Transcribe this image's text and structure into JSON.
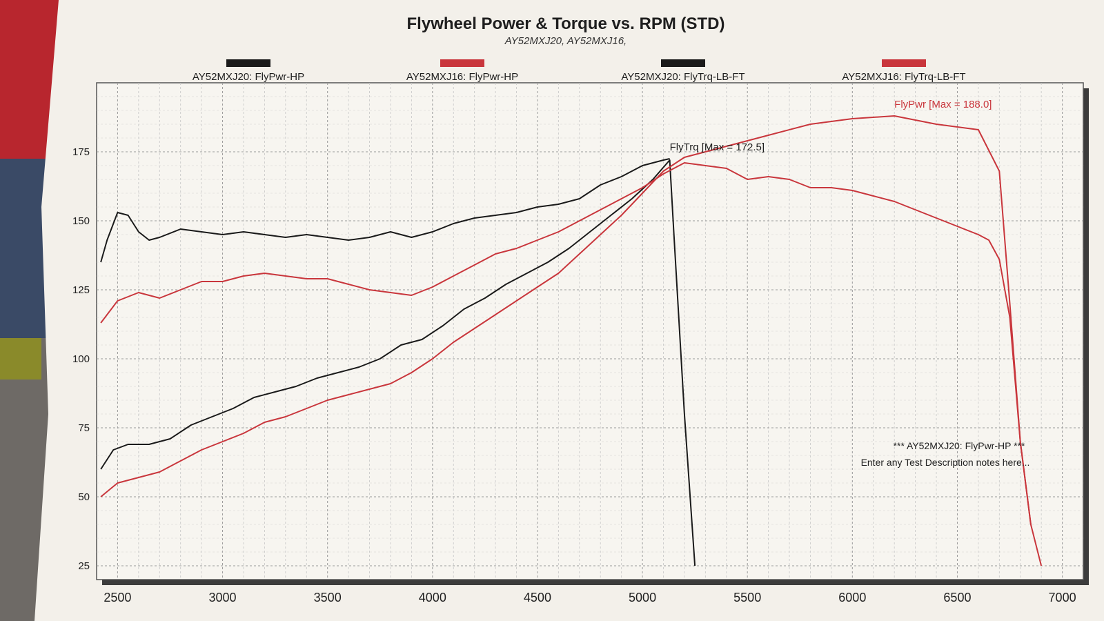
{
  "chart_data": {
    "type": "line",
    "title": "Flywheel Power & Torque vs. RPM (STD)",
    "subtitle": "AY52MXJ20, AY52MXJ16,",
    "xlim": [
      2400,
      7100
    ],
    "ylim": [
      20,
      200
    ],
    "x_ticks": [
      2500,
      3000,
      3500,
      4000,
      4500,
      5000,
      5500,
      6000,
      6500,
      7000
    ],
    "y_ticks": [
      25,
      50,
      75,
      100,
      125,
      150,
      175
    ],
    "grid": true,
    "legend_position": "top",
    "xlabel": "",
    "ylabel": "",
    "series": [
      {
        "name": "AY52MXJ20: FlyPwr-HP",
        "color": "#1a1a1a",
        "x": [
          2420,
          2480,
          2550,
          2650,
          2750,
          2850,
          2950,
          3050,
          3150,
          3250,
          3350,
          3450,
          3550,
          3650,
          3750,
          3850,
          3950,
          4050,
          4150,
          4250,
          4350,
          4450,
          4550,
          4650,
          4750,
          4850,
          4950,
          5050,
          5130,
          5150,
          5200,
          5250
        ],
        "y": [
          60,
          67,
          69,
          69,
          71,
          76,
          79,
          82,
          86,
          88,
          90,
          93,
          95,
          97,
          100,
          105,
          107,
          112,
          118,
          122,
          127,
          131,
          135,
          140,
          146,
          152,
          158,
          165,
          172,
          145,
          80,
          25
        ]
      },
      {
        "name": "AY52MXJ16: FlyPwr-HP",
        "color": "#c9363c",
        "x": [
          2420,
          2500,
          2600,
          2700,
          2800,
          2900,
          3000,
          3100,
          3200,
          3300,
          3400,
          3500,
          3600,
          3700,
          3800,
          3900,
          4000,
          4100,
          4200,
          4300,
          4400,
          4500,
          4600,
          4700,
          4800,
          4900,
          5000,
          5100,
          5200,
          5400,
          5600,
          5800,
          6000,
          6200,
          6400,
          6600,
          6700,
          6750,
          6800,
          6850,
          6900
        ],
        "y": [
          50,
          55,
          57,
          59,
          63,
          67,
          70,
          73,
          77,
          79,
          82,
          85,
          87,
          89,
          91,
          95,
          100,
          106,
          111,
          116,
          121,
          126,
          131,
          138,
          145,
          152,
          160,
          168,
          173,
          177,
          181,
          185,
          187,
          188,
          185,
          183,
          168,
          120,
          70,
          40,
          25
        ]
      },
      {
        "name": "AY52MXJ20: FlyTrq-LB-FT",
        "color": "#1a1a1a",
        "x": [
          2420,
          2450,
          2500,
          2550,
          2600,
          2650,
          2700,
          2800,
          2900,
          3000,
          3100,
          3200,
          3300,
          3400,
          3500,
          3600,
          3700,
          3800,
          3900,
          4000,
          4100,
          4200,
          4300,
          4400,
          4500,
          4600,
          4700,
          4800,
          4900,
          5000,
          5100,
          5130
        ],
        "y": [
          135,
          143,
          153,
          152,
          146,
          143,
          144,
          147,
          146,
          145,
          146,
          145,
          144,
          145,
          144,
          143,
          144,
          146,
          144,
          146,
          149,
          151,
          152,
          153,
          155,
          156,
          158,
          163,
          166,
          170,
          172,
          172.5
        ]
      },
      {
        "name": "AY52MXJ16: FlyTrq-LB-FT",
        "color": "#c9363c",
        "x": [
          2420,
          2500,
          2600,
          2700,
          2800,
          2900,
          3000,
          3100,
          3200,
          3300,
          3400,
          3500,
          3600,
          3700,
          3800,
          3900,
          4000,
          4100,
          4200,
          4300,
          4400,
          4500,
          4600,
          4700,
          4800,
          4900,
          5000,
          5100,
          5200,
          5300,
          5400,
          5500,
          5600,
          5700,
          5800,
          5900,
          6000,
          6100,
          6200,
          6300,
          6400,
          6500,
          6600,
          6650,
          6700,
          6750,
          6800,
          6850
        ],
        "y": [
          113,
          121,
          124,
          122,
          125,
          128,
          128,
          130,
          131,
          130,
          129,
          129,
          127,
          125,
          124,
          123,
          126,
          130,
          134,
          138,
          140,
          143,
          146,
          150,
          154,
          158,
          162,
          167,
          171,
          170,
          169,
          165,
          166,
          165,
          162,
          162,
          161,
          159,
          157,
          154,
          151,
          148,
          145,
          143,
          136,
          115,
          70,
          40
        ]
      }
    ],
    "annotations": [
      {
        "text": "FlyTrq [Max = 172.5]",
        "x": 5130,
        "y": 172.5,
        "color": "#1a1a1a"
      },
      {
        "text": "FlyPwr [Max = 188.0]",
        "x": 6200,
        "y": 188.0,
        "color": "#c9363c"
      }
    ],
    "notes": [
      "*** AY52MXJ20: FlyPwr-HP ***",
      "Enter any Test Description notes here..."
    ]
  }
}
